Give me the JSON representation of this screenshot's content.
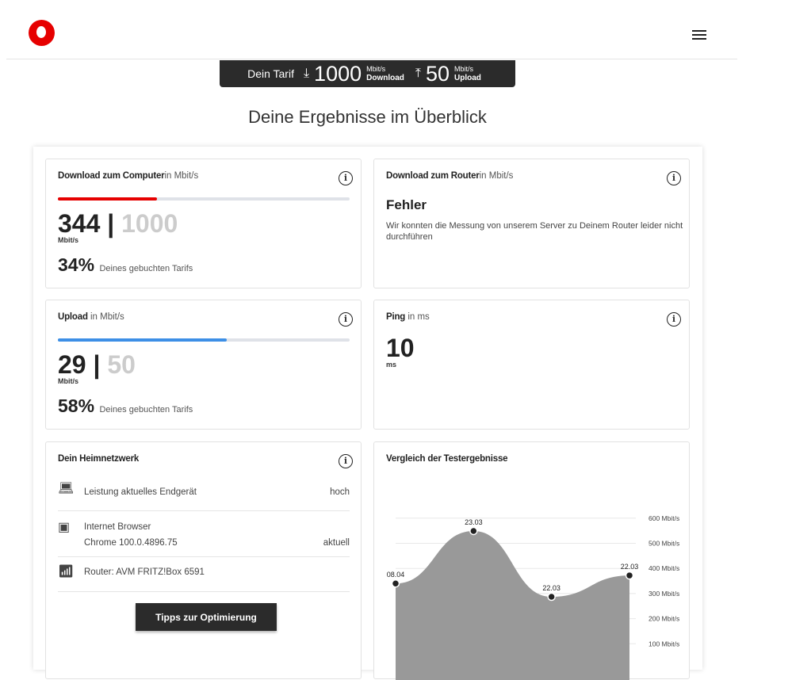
{
  "header": {
    "logo": "vodafone",
    "menu_icon": "hamburger-icon"
  },
  "tarif": {
    "label": "Dein Tarif",
    "download_value": "1000",
    "download_unit": "Mbit/s",
    "download_label": "Download",
    "upload_value": "50",
    "upload_unit": "Mbit/s",
    "upload_label": "Upload"
  },
  "title": "Deine Ergebnisse im Überblick",
  "download_computer": {
    "title": "Download zum Computer",
    "unit_suffix": "in Mbit/s",
    "value": "344",
    "max": "1000",
    "unit": "Mbit/s",
    "percent": "34%",
    "percent_text": "Deines gebuchten Tarifs",
    "progress": 34,
    "color": "#e60000"
  },
  "download_router": {
    "title": "Download zum Router",
    "unit_suffix": "in Mbit/s",
    "error_title": "Fehler",
    "error_text": "Wir konnten die Messung von unserem Server zu Deinem Router leider nicht durchführen"
  },
  "upload": {
    "title": "Upload",
    "unit_suffix": " in Mbit/s",
    "value": "29",
    "max": "50",
    "unit": "Mbit/s",
    "percent": "58%",
    "percent_text": "Deines gebuchten Tarifs",
    "progress": 58,
    "color": "#3d8fe6"
  },
  "ping": {
    "title": "Ping",
    "unit_suffix": " in ms",
    "value": "10",
    "unit": "ms"
  },
  "heimnetz": {
    "title": "Dein Heimnetzwerk",
    "rows": [
      {
        "icon": "laptop-icon",
        "label": "Leistung aktuelles Endgerät",
        "value": "hoch"
      },
      {
        "icon": "browser-icon",
        "label": "Internet Browser",
        "sub": "Chrome 100.0.4896.75",
        "value": "aktuell"
      },
      {
        "icon": "router-icon",
        "label": "Router: AVM FRITZ!Box 6591"
      }
    ],
    "button": "Tipps zur Optimierung"
  },
  "chart_data": {
    "type": "area",
    "title": "Vergleich der Testergebnisse",
    "x": [
      "08.04",
      "23.03",
      "22.03",
      "22.03"
    ],
    "values": [
      340,
      549,
      287,
      372
    ],
    "ylim": [
      0,
      600
    ],
    "yticks": [
      "100 Mbit/s",
      "200 Mbit/s",
      "300 Mbit/s",
      "400 Mbit/s",
      "500 Mbit/s",
      "600 Mbit/s"
    ],
    "ytick_values": [
      100,
      200,
      300,
      400,
      500,
      600
    ],
    "grid": true,
    "color": "#999999"
  }
}
